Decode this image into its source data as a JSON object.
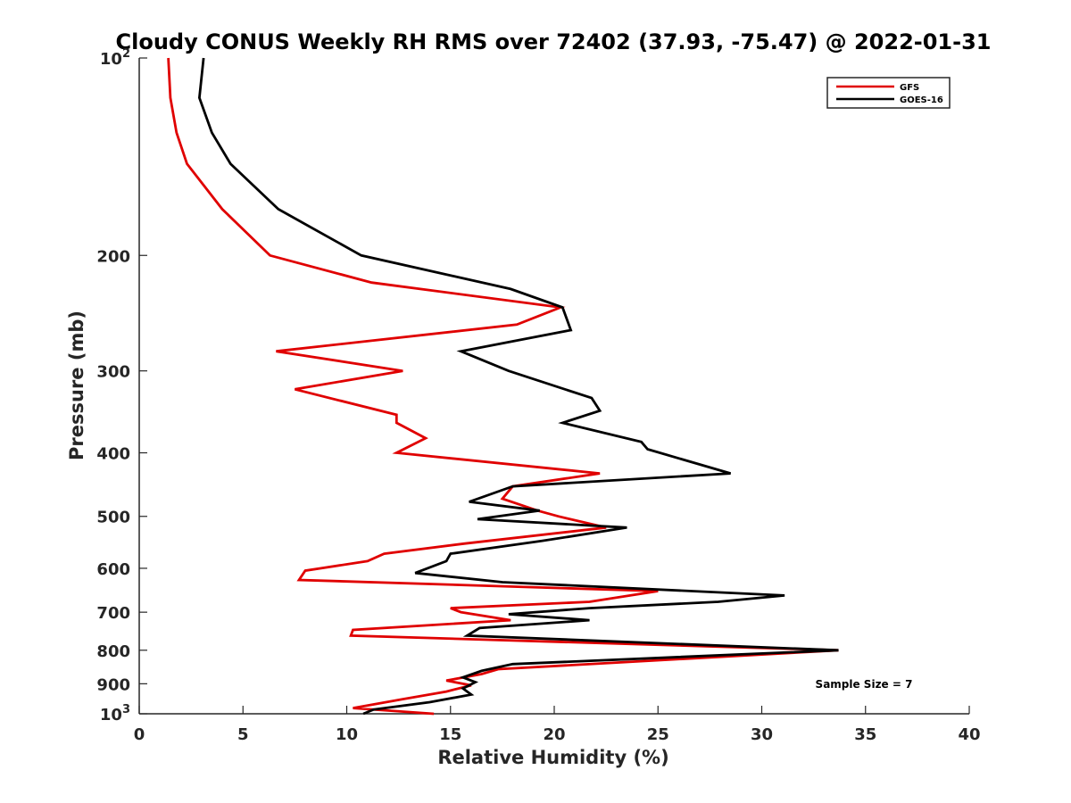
{
  "chart_data": {
    "type": "line",
    "title": "Cloudy CONUS Weekly RH RMS over 72402 (37.93, -75.47) @ 2022-01-31",
    "xlabel": "Relative Humidity (%)",
    "ylabel": "Pressure (mb)",
    "xlim": [
      0,
      40
    ],
    "ylim": [
      100,
      1000
    ],
    "y_scale": "log",
    "y_reversed": true,
    "x_ticks": [
      "0",
      "5",
      "10",
      "15",
      "20",
      "25",
      "30",
      "35",
      "40"
    ],
    "y_ticks": [
      {
        "value": 100,
        "base": "10",
        "exp": "2"
      },
      {
        "value": 200,
        "label": "200"
      },
      {
        "value": 300,
        "label": "300"
      },
      {
        "value": 400,
        "label": "400"
      },
      {
        "value": 500,
        "label": "500"
      },
      {
        "value": 600,
        "label": "600"
      },
      {
        "value": 700,
        "label": "700"
      },
      {
        "value": 800,
        "label": "800"
      },
      {
        "value": 900,
        "label": "900"
      },
      {
        "value": 1000,
        "base": "10",
        "exp": "3"
      }
    ],
    "grid": false,
    "legend_position": "top-right",
    "annotation": "Sample Size = 7",
    "series": [
      {
        "name": "GFS",
        "color": "#e00000",
        "points": [
          [
            1.4,
            100
          ],
          [
            1.5,
            115
          ],
          [
            1.8,
            130
          ],
          [
            2.3,
            145
          ],
          [
            4.0,
            170
          ],
          [
            6.3,
            200
          ],
          [
            11.2,
            220
          ],
          [
            20.3,
            240
          ],
          [
            18.2,
            255
          ],
          [
            6.6,
            280
          ],
          [
            12.7,
            300
          ],
          [
            7.5,
            320
          ],
          [
            12.4,
            350
          ],
          [
            12.4,
            360
          ],
          [
            13.8,
            380
          ],
          [
            12.4,
            400
          ],
          [
            22.2,
            430
          ],
          [
            18.0,
            450
          ],
          [
            17.5,
            470
          ],
          [
            19.2,
            490
          ],
          [
            20.2,
            500
          ],
          [
            22.5,
            520
          ],
          [
            15.7,
            550
          ],
          [
            11.8,
            570
          ],
          [
            11.0,
            585
          ],
          [
            8.0,
            605
          ],
          [
            7.7,
            625
          ],
          [
            25.0,
            650
          ],
          [
            21.7,
            675
          ],
          [
            15.0,
            690
          ],
          [
            15.5,
            700
          ],
          [
            17.9,
            720
          ],
          [
            10.3,
            745
          ],
          [
            10.2,
            760
          ],
          [
            33.7,
            800
          ],
          [
            17.3,
            855
          ],
          [
            16.5,
            870
          ],
          [
            14.8,
            890
          ],
          [
            16.0,
            905
          ],
          [
            14.8,
            925
          ],
          [
            12.7,
            950
          ],
          [
            10.3,
            980
          ],
          [
            14.2,
            1000
          ]
        ]
      },
      {
        "name": "GOES-16",
        "color": "#000000",
        "points": [
          [
            3.1,
            100
          ],
          [
            2.9,
            115
          ],
          [
            3.5,
            130
          ],
          [
            4.4,
            145
          ],
          [
            6.7,
            170
          ],
          [
            10.7,
            200
          ],
          [
            17.9,
            225
          ],
          [
            20.4,
            240
          ],
          [
            20.8,
            260
          ],
          [
            15.5,
            280
          ],
          [
            17.8,
            300
          ],
          [
            21.8,
            330
          ],
          [
            22.2,
            345
          ],
          [
            20.4,
            360
          ],
          [
            24.2,
            385
          ],
          [
            24.5,
            395
          ],
          [
            28.5,
            430
          ],
          [
            18.0,
            450
          ],
          [
            15.9,
            475
          ],
          [
            19.3,
            490
          ],
          [
            16.3,
            505
          ],
          [
            23.5,
            520
          ],
          [
            19.4,
            545
          ],
          [
            15.0,
            570
          ],
          [
            14.8,
            585
          ],
          [
            13.3,
            610
          ],
          [
            17.5,
            630
          ],
          [
            31.1,
            660
          ],
          [
            27.9,
            675
          ],
          [
            21.7,
            690
          ],
          [
            17.8,
            705
          ],
          [
            21.7,
            720
          ],
          [
            16.4,
            740
          ],
          [
            15.8,
            760
          ],
          [
            33.7,
            800
          ],
          [
            18.0,
            840
          ],
          [
            16.5,
            860
          ],
          [
            15.6,
            880
          ],
          [
            16.2,
            895
          ],
          [
            15.6,
            915
          ],
          [
            16.0,
            935
          ],
          [
            14.0,
            960
          ],
          [
            11.3,
            985
          ],
          [
            10.8,
            1000
          ]
        ]
      }
    ]
  }
}
